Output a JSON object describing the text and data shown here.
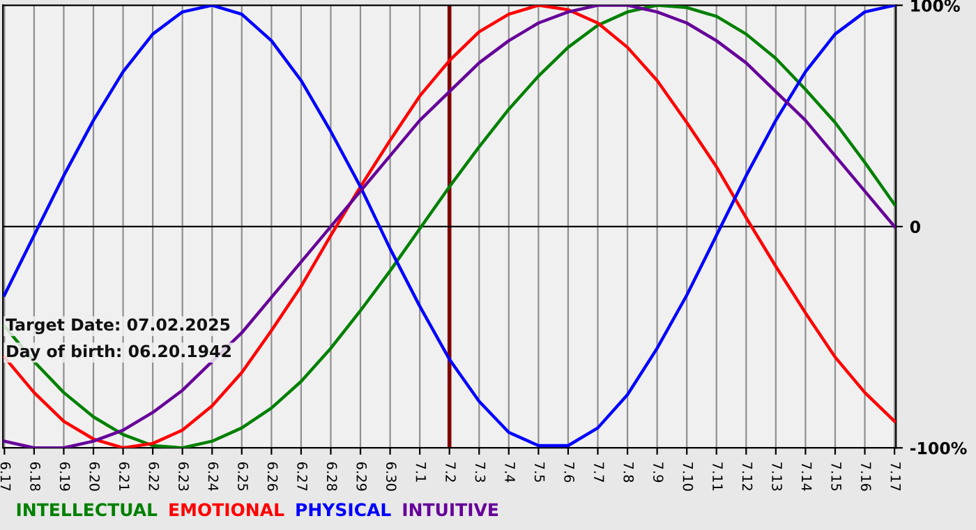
{
  "chart_data": {
    "type": "line",
    "categories": [
      "6.17",
      "6.18",
      "6.19",
      "6.20",
      "6.21",
      "6.22",
      "6.23",
      "6.24",
      "6.25",
      "6.26",
      "6.27",
      "6.28",
      "6.29",
      "6.30",
      "7.1",
      "7.2",
      "7.3",
      "7.4",
      "7.5",
      "7.6",
      "7.7",
      "7.8",
      "7.9",
      "7.10",
      "7.11",
      "7.12",
      "7.13",
      "7.14",
      "7.15",
      "7.16",
      "7.17"
    ],
    "series": [
      {
        "name": "INTELLECTUAL",
        "color": "#008000",
        "values": [
          -45,
          -61,
          -75,
          -86,
          -94,
          -99,
          -100,
          -97,
          -91,
          -82,
          -70,
          -55,
          -38,
          -20,
          -1,
          18,
          36,
          53,
          68,
          81,
          91,
          97,
          100,
          99,
          95,
          87,
          76,
          62,
          47,
          29,
          10
        ]
      },
      {
        "name": "EMOTIONAL",
        "color": "#ff0000",
        "values": [
          -59,
          -75,
          -88,
          -96,
          -100,
          -98,
          -92,
          -81,
          -66,
          -47,
          -27,
          -4,
          18,
          39,
          59,
          75,
          88,
          96,
          100,
          98,
          92,
          81,
          66,
          47,
          27,
          4,
          -18,
          -39,
          -59,
          -75,
          -88
        ]
      },
      {
        "name": "PHYSICAL",
        "color": "#0000ff",
        "values": [
          -31,
          -4,
          23,
          48,
          70,
          87,
          97,
          100,
          96,
          84,
          66,
          43,
          18,
          -10,
          -36,
          -60,
          -79,
          -93,
          -99,
          -99,
          -91,
          -76,
          -55,
          -31,
          -4,
          23,
          48,
          70,
          87,
          97,
          100
        ]
      },
      {
        "name": "INTUITIVE",
        "color": "#660099",
        "values": [
          -97,
          -100,
          -100,
          -97,
          -92,
          -84,
          -74,
          -61,
          -48,
          -32,
          -16,
          0,
          16,
          32,
          48,
          61,
          74,
          84,
          92,
          97,
          100,
          100,
          97,
          92,
          84,
          74,
          61,
          48,
          32,
          16,
          0
        ]
      }
    ],
    "ylim": [
      -100,
      100
    ],
    "yticks": [
      {
        "value": 100,
        "label": "100%"
      },
      {
        "value": 0,
        "label": "0"
      },
      {
        "value": -100,
        "label": "-100%"
      }
    ],
    "grid": "x",
    "legend": "bottom",
    "marker": "none",
    "line_style": "solid",
    "ref_lines": [
      {
        "axis": "x",
        "value": "7.2",
        "color": "#800000"
      },
      {
        "axis": "y",
        "value": 0,
        "color": "#000000"
      }
    ],
    "annotations": [
      "Target Date: 07.02.2025",
      "Day of birth: 06.20.1942"
    ]
  }
}
